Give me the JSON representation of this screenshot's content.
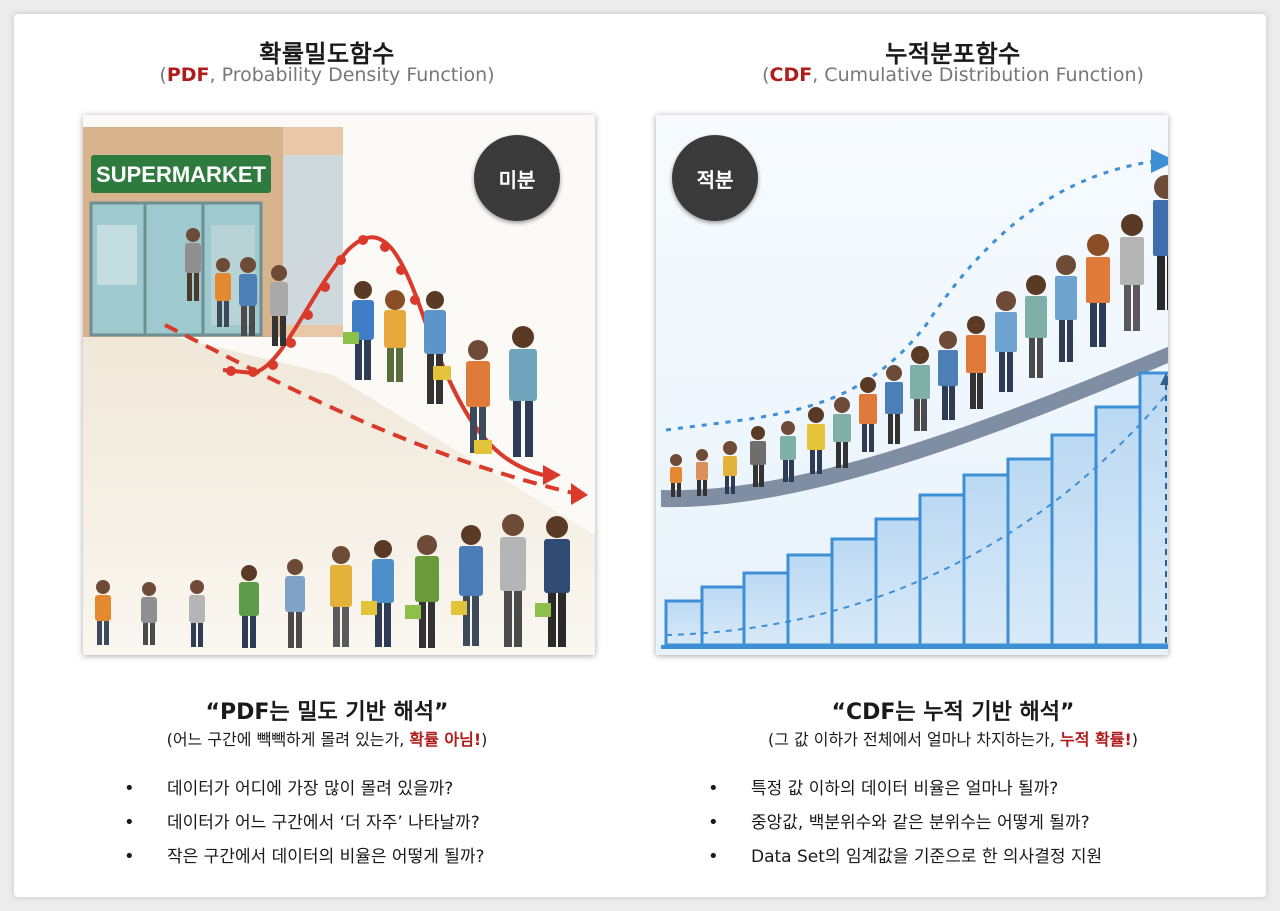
{
  "left": {
    "title": "확률밀도함수",
    "subtitle_open": "(",
    "subtitle_acronym": "PDF",
    "subtitle_rest": ", Probability Density Function)",
    "sign_text": "SUPERMARKET",
    "badge": "미분",
    "quote": "“PDF는 밀도 기반 해석”",
    "note_pre": "(어느 구간에 빽빽하게 몰려 있는가, ",
    "note_highlight": "확률 아님!",
    "note_post": ")",
    "bullet_symbol": "•",
    "bullets": [
      "데이터가 어디에 가장 많이 몰려 있을까?",
      "데이터가 어느 구간에서 ‘더 자주’ 나타날까?",
      "작은 구간에서 데이터의 비율은 어떻게 될까?"
    ]
  },
  "right": {
    "title": "누적분포함수",
    "subtitle_open": "(",
    "subtitle_acronym": "CDF",
    "subtitle_rest": ", Cumulative Distribution Function)",
    "badge": "적분",
    "quote": "“CDF는 누적 기반 해석”",
    "note_pre": "(그 값 이하가 전체에서 얼마나 차지하는가, ",
    "note_highlight": "누적 확률!",
    "note_post": ")",
    "bullet_symbol": "•",
    "bullets": [
      "특정 값 이하의 데이터 비율은 얼마나 될까?",
      "중앙값, 백분위수와 같은 분위수는 어떻게 될까?",
      "Data Set의 임계값을 기준으로 한 의사결정 지원"
    ]
  },
  "colors": {
    "accent_red": "#b01c1c",
    "curve_red": "#d93a2b",
    "cdf_blue": "#3d8fd6",
    "badge_dark": "#3a3a3a"
  }
}
